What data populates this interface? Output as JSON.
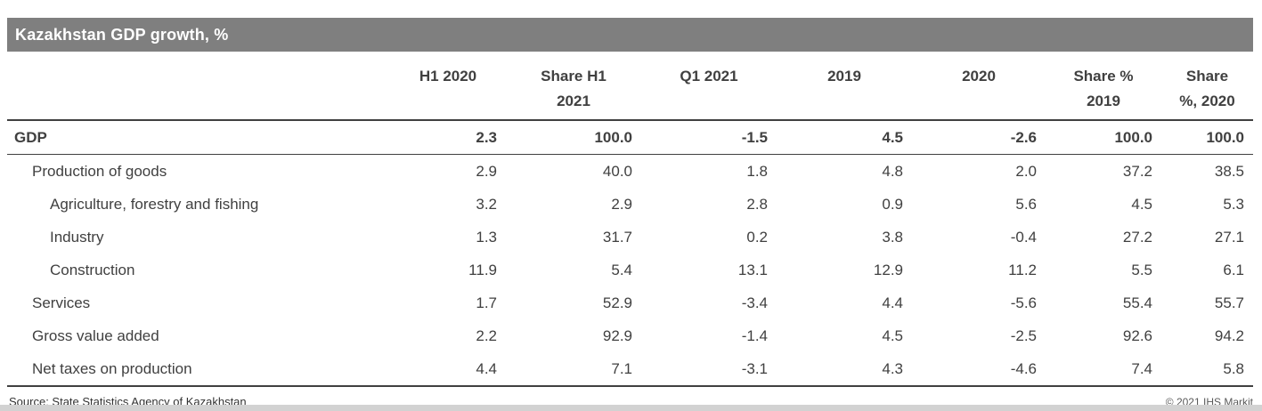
{
  "chart_data": {
    "type": "table",
    "title": "Kazakhstan GDP growth, %",
    "columns": [
      {
        "line1": "H1 2020",
        "line2": ""
      },
      {
        "line1": "Share H1",
        "line2": "2021"
      },
      {
        "line1": "Q1 2021",
        "line2": ""
      },
      {
        "line1": "2019",
        "line2": ""
      },
      {
        "line1": "2020",
        "line2": ""
      },
      {
        "line1": "Share %",
        "line2": "2019"
      },
      {
        "line1": "Share",
        "line2": "%, 2020"
      }
    ],
    "rows": [
      {
        "label": "GDP",
        "indent": 0,
        "bold": true,
        "values": [
          "2.3",
          "100.0",
          "-1.5",
          "4.5",
          "-2.6",
          "100.0",
          "100.0"
        ]
      },
      {
        "label": "Production of goods",
        "indent": 1,
        "bold": false,
        "values": [
          "2.9",
          "40.0",
          "1.8",
          "4.8",
          "2.0",
          "37.2",
          "38.5"
        ]
      },
      {
        "label": "Agriculture, forestry and fishing",
        "indent": 2,
        "bold": false,
        "values": [
          "3.2",
          "2.9",
          "2.8",
          "0.9",
          "5.6",
          "4.5",
          "5.3"
        ]
      },
      {
        "label": "Industry",
        "indent": 2,
        "bold": false,
        "values": [
          "1.3",
          "31.7",
          "0.2",
          "3.8",
          "-0.4",
          "27.2",
          "27.1"
        ]
      },
      {
        "label": "Construction",
        "indent": 2,
        "bold": false,
        "values": [
          "11.9",
          "5.4",
          "13.1",
          "12.9",
          "11.2",
          "5.5",
          "6.1"
        ]
      },
      {
        "label": "Services",
        "indent": 1,
        "bold": false,
        "values": [
          "1.7",
          "52.9",
          "-3.4",
          "4.4",
          "-5.6",
          "55.4",
          "55.7"
        ]
      },
      {
        "label": "Gross value added",
        "indent": 1,
        "bold": false,
        "values": [
          "2.2",
          "92.9",
          "-1.4",
          "4.5",
          "-2.5",
          "92.6",
          "94.2"
        ]
      },
      {
        "label": "Net taxes on production",
        "indent": 1,
        "bold": false,
        "values": [
          "4.4",
          "7.1",
          "-3.1",
          "4.3",
          "-4.6",
          "7.4",
          "5.8"
        ]
      }
    ]
  },
  "footer": {
    "source": "Source: State Statistics Agency of Kazakhstan",
    "copyright": "© 2021 IHS Markit"
  },
  "colors": {
    "title_bar_bg": "#7f7f7f",
    "title_text": "#ffffff",
    "text": "#404040",
    "border": "#404040"
  }
}
